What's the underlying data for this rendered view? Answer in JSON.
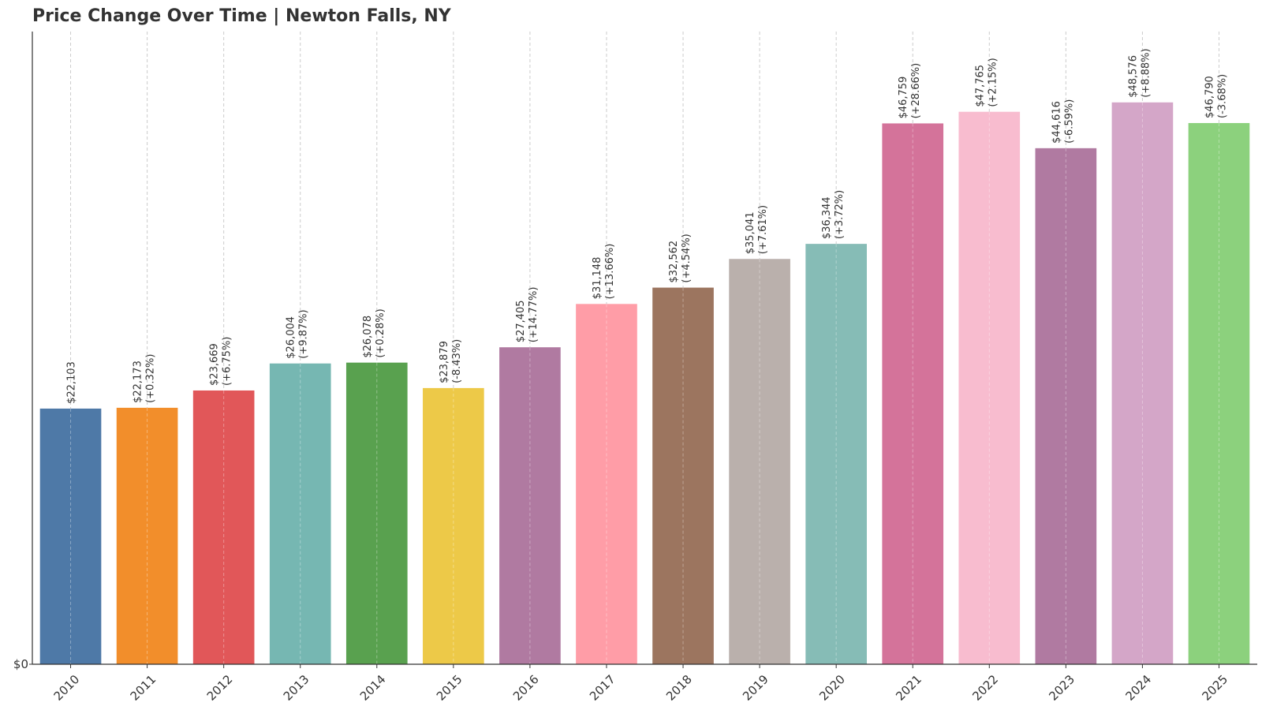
{
  "chart_data": {
    "type": "bar",
    "title": "Price Change Over Time | Newton Falls, NY",
    "xlabel": "",
    "ylabel": "",
    "ylim": [
      0,
      54700
    ],
    "y_tick_labels": [
      {
        "value": 0,
        "label": "$0"
      }
    ],
    "grid": "vertical dashed lines at each category",
    "categories": [
      "2010",
      "2011",
      "2012",
      "2013",
      "2014",
      "2015",
      "2016",
      "2017",
      "2018",
      "2019",
      "2020",
      "2021",
      "2022",
      "2023",
      "2024",
      "2025"
    ],
    "values": [
      22103,
      22173,
      23669,
      26004,
      26078,
      23879,
      27405,
      31148,
      32562,
      35041,
      36344,
      46759,
      47765,
      44616,
      48576,
      46790
    ],
    "value_labels": [
      "$22,103",
      "$22,173",
      "$23,669",
      "$26,004",
      "$26,078",
      "$23,879",
      "$27,405",
      "$31,148",
      "$32,562",
      "$35,041",
      "$36,344",
      "$46,759",
      "$47,765",
      "$44,616",
      "$48,576",
      "$46,790"
    ],
    "change_labels": [
      "",
      "(+0.32%)",
      "(+6.75%)",
      "(+9.87%)",
      "(+0.28%)",
      "(-8.43%)",
      "(+14.77%)",
      "(+13.66%)",
      "(+4.54%)",
      "(+7.61%)",
      "(+3.72%)",
      "(+28.66%)",
      "(+2.15%)",
      "(-6.59%)",
      "(+8.88%)",
      "(-3.68%)"
    ],
    "colors": [
      "#4e79a7",
      "#f28e2b",
      "#e15759",
      "#76b7b2",
      "#59a14f",
      "#edc948",
      "#b07aa1",
      "#ff9da7",
      "#9c755f",
      "#bab0ac",
      "#86bcb6",
      "#d4739a",
      "#f8bccf",
      "#b07aa1",
      "#d4a6c8",
      "#8cd17d"
    ]
  }
}
